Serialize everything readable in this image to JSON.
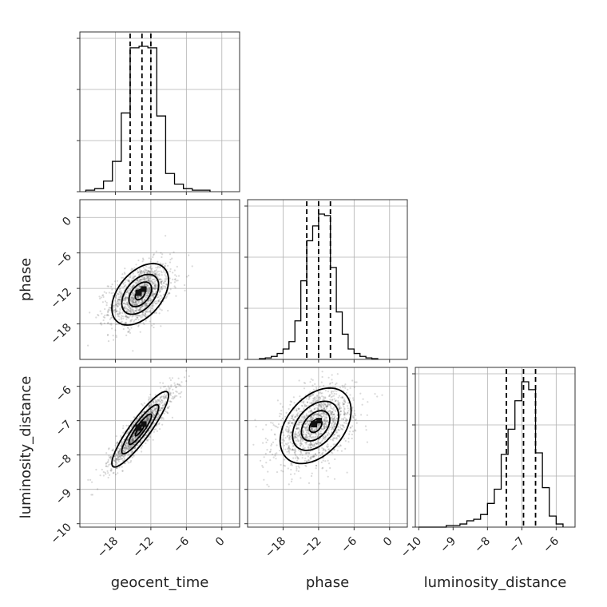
{
  "chart_data": {
    "type": "scatter",
    "parameters": [
      "geocent_time",
      "phase",
      "luminosity_distance"
    ],
    "axis_labels": {
      "geocent_time": "geocent_time",
      "phase": "phase",
      "luminosity_distance": "luminosity_distance"
    },
    "ranges": {
      "geocent_time": [
        -24,
        3
      ],
      "phase": [
        -24,
        3
      ],
      "luminosity_distance": [
        -10.1,
        -5.45
      ]
    },
    "ticks": {
      "geocent_time": [
        -18,
        -12,
        -6,
        0
      ],
      "phase": [
        -18,
        -12,
        -6,
        0
      ],
      "luminosity_distance": [
        -10,
        -9,
        -8,
        -7,
        -6
      ]
    },
    "tick_labels": {
      "geocent_time": [
        "−18",
        "−12",
        "−6",
        "0"
      ],
      "phase": [
        "−18",
        "−12",
        "−6",
        "0"
      ],
      "luminosity_distance": [
        "−10",
        "−9",
        "−8",
        "−7",
        "−6"
      ]
    },
    "quantiles": {
      "geocent_time": [
        -15.5,
        -13.5,
        -12.0
      ],
      "phase": [
        -14.0,
        -12.0,
        -10.0
      ],
      "luminosity_distance": [
        -7.45,
        -6.95,
        -6.6
      ]
    },
    "histograms": {
      "geocent_time": {
        "edges": [
          -23,
          -21.5,
          -20,
          -18.5,
          -17,
          -15.5,
          -14,
          -12.5,
          -11,
          -9.5,
          -8,
          -6.5,
          -5,
          -3.5,
          -2
        ],
        "counts": [
          1,
          2,
          7,
          20,
          52,
          95,
          96,
          95,
          50,
          12,
          5,
          2,
          1,
          1
        ]
      },
      "phase": {
        "edges": [
          -22,
          -21,
          -20,
          -19,
          -18,
          -17,
          -16,
          -15,
          -14,
          -13,
          -12,
          -11,
          -10,
          -9,
          -8,
          -7,
          -6,
          -5,
          -4,
          -3,
          -2
        ],
        "counts": [
          0.5,
          1,
          2,
          4,
          7,
          12,
          26,
          53,
          80,
          90,
          98,
          97,
          62,
          32,
          17,
          7,
          4,
          2,
          1,
          0.5
        ]
      },
      "luminosity_distance": {
        "edges": [
          -10,
          -9.8,
          -9.6,
          -9.4,
          -9.2,
          -9.0,
          -8.8,
          -8.6,
          -8.4,
          -8.2,
          -8.0,
          -7.8,
          -7.6,
          -7.4,
          -7.2,
          -7.0,
          -6.8,
          -6.6,
          -6.4,
          -6.2,
          -6.0,
          -5.8
        ],
        "counts": [
          0,
          0,
          0,
          0,
          1,
          1,
          2,
          4,
          5,
          8,
          15,
          24,
          46,
          62,
          80,
          92,
          87,
          47,
          25,
          7,
          2
        ]
      }
    },
    "joint": {
      "geocent_time|phase": {
        "mean": [
          -13.8,
          -13.0
        ],
        "sd": [
          2.4,
          2.6
        ],
        "corr": 0.45
      },
      "geocent_time|luminosity_distance": {
        "mean": [
          -13.8,
          -7.25
        ],
        "sd": [
          2.4,
          0.55
        ],
        "corr": 0.9
      },
      "phase|luminosity_distance": {
        "mean": [
          -12.5,
          -7.15
        ],
        "sd": [
          3.0,
          0.55
        ],
        "corr": 0.4
      }
    },
    "grid": true,
    "colors": {
      "lines": "#000000",
      "points": "#555555",
      "grid": "#b0b0b0",
      "background": "#ffffff"
    }
  }
}
